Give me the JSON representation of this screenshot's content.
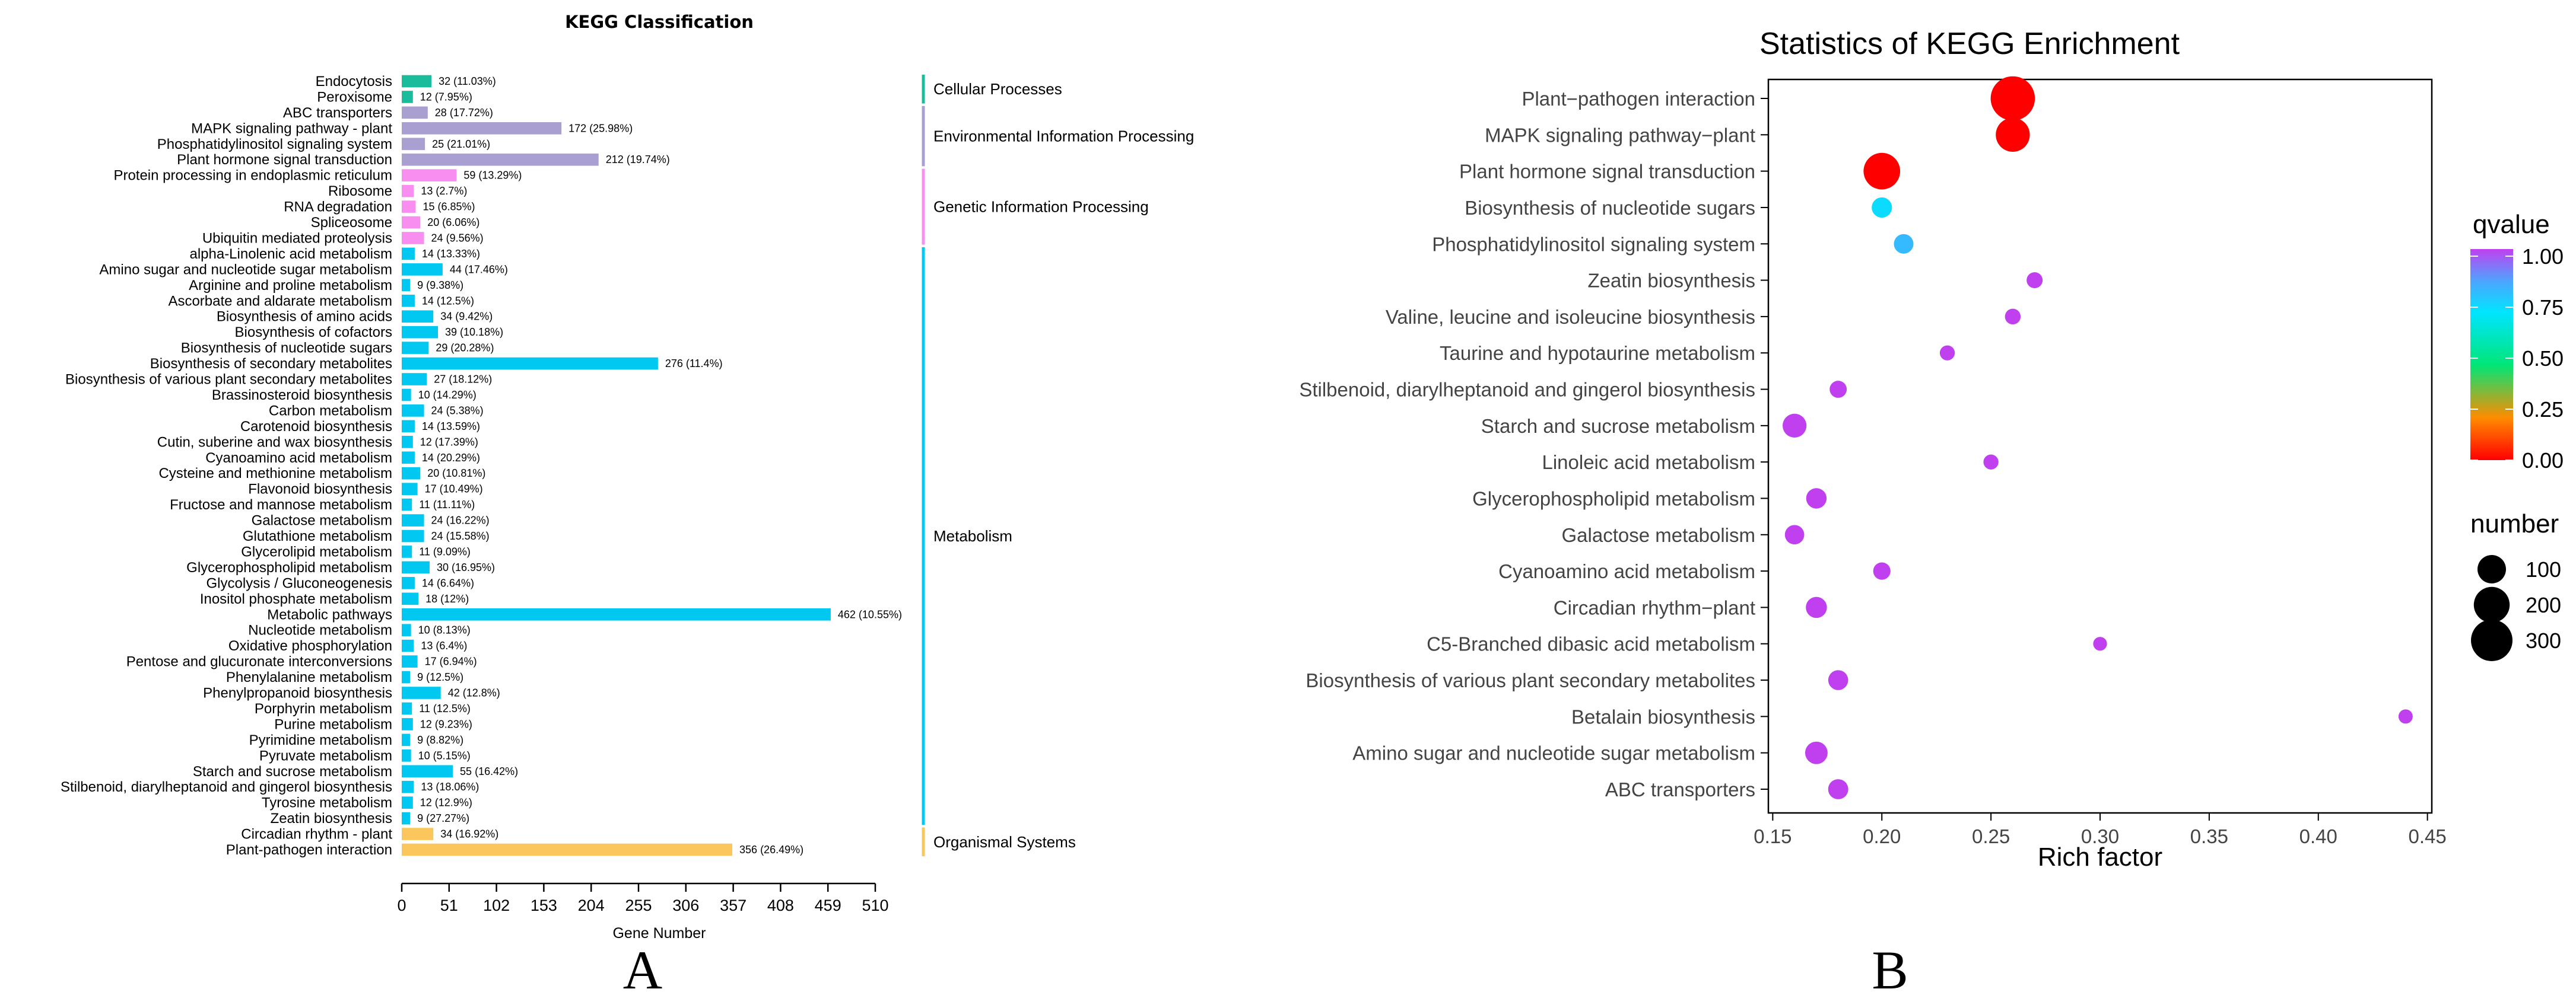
{
  "chart_data": [
    {
      "type": "bar",
      "orientation": "horizontal",
      "title": "KEGG Classification",
      "xlabel": "Gene Number",
      "xlim": [
        0,
        510
      ],
      "xticks": [
        "0",
        "51",
        "102",
        "153",
        "204",
        "255",
        "306",
        "357",
        "408",
        "459",
        "510"
      ],
      "categories": [
        {
          "name": "Cellular Processes",
          "color": "#1ABC9C"
        },
        {
          "name": "Environmental Information Processing",
          "color": "#A99FD0"
        },
        {
          "name": "Genetic Information Processing",
          "color": "#F78EF0"
        },
        {
          "name": "Metabolism",
          "color": "#00C8F0"
        },
        {
          "name": "Organismal Systems",
          "color": "#FBC75C"
        }
      ],
      "bars": [
        {
          "label": "Endocytosis",
          "value": 32,
          "annotation": "32 (11.03%)",
          "category": 0
        },
        {
          "label": "Peroxisome",
          "value": 12,
          "annotation": "12 (7.95%)",
          "category": 0
        },
        {
          "label": "ABC transporters",
          "value": 28,
          "annotation": "28 (17.72%)",
          "category": 1
        },
        {
          "label": "MAPK signaling pathway - plant",
          "value": 172,
          "annotation": "172 (25.98%)",
          "category": 1
        },
        {
          "label": "Phosphatidylinositol signaling system",
          "value": 25,
          "annotation": "25 (21.01%)",
          "category": 1
        },
        {
          "label": "Plant hormone signal transduction",
          "value": 212,
          "annotation": "212 (19.74%)",
          "category": 1
        },
        {
          "label": "Protein processing in endoplasmic reticulum",
          "value": 59,
          "annotation": "59 (13.29%)",
          "category": 2
        },
        {
          "label": "Ribosome",
          "value": 13,
          "annotation": "13 (2.7%)",
          "category": 2
        },
        {
          "label": "RNA degradation",
          "value": 15,
          "annotation": "15 (6.85%)",
          "category": 2
        },
        {
          "label": "Spliceosome",
          "value": 20,
          "annotation": "20 (6.06%)",
          "category": 2
        },
        {
          "label": "Ubiquitin mediated proteolysis",
          "value": 24,
          "annotation": "24 (9.56%)",
          "category": 2
        },
        {
          "label": "alpha-Linolenic acid metabolism",
          "value": 14,
          "annotation": "14 (13.33%)",
          "category": 3
        },
        {
          "label": "Amino sugar and nucleotide sugar metabolism",
          "value": 44,
          "annotation": "44 (17.46%)",
          "category": 3
        },
        {
          "label": "Arginine and proline metabolism",
          "value": 9,
          "annotation": "9 (9.38%)",
          "category": 3
        },
        {
          "label": "Ascorbate and aldarate metabolism",
          "value": 14,
          "annotation": "14 (12.5%)",
          "category": 3
        },
        {
          "label": "Biosynthesis of amino acids",
          "value": 34,
          "annotation": "34 (9.42%)",
          "category": 3
        },
        {
          "label": "Biosynthesis of cofactors",
          "value": 39,
          "annotation": "39 (10.18%)",
          "category": 3
        },
        {
          "label": "Biosynthesis of nucleotide sugars",
          "value": 29,
          "annotation": "29 (20.28%)",
          "category": 3
        },
        {
          "label": "Biosynthesis of secondary metabolites",
          "value": 276,
          "annotation": "276 (11.4%)",
          "category": 3
        },
        {
          "label": "Biosynthesis of various plant secondary metabolites",
          "value": 27,
          "annotation": "27 (18.12%)",
          "category": 3
        },
        {
          "label": "Brassinosteroid biosynthesis",
          "value": 10,
          "annotation": "10 (14.29%)",
          "category": 3
        },
        {
          "label": "Carbon metabolism",
          "value": 24,
          "annotation": "24 (5.38%)",
          "category": 3
        },
        {
          "label": "Carotenoid biosynthesis",
          "value": 14,
          "annotation": "14 (13.59%)",
          "category": 3
        },
        {
          "label": "Cutin, suberine and wax biosynthesis",
          "value": 12,
          "annotation": "12 (17.39%)",
          "category": 3
        },
        {
          "label": "Cyanoamino acid metabolism",
          "value": 14,
          "annotation": "14 (20.29%)",
          "category": 3
        },
        {
          "label": "Cysteine and methionine metabolism",
          "value": 20,
          "annotation": "20 (10.81%)",
          "category": 3
        },
        {
          "label": "Flavonoid biosynthesis",
          "value": 17,
          "annotation": "17 (10.49%)",
          "category": 3
        },
        {
          "label": "Fructose and mannose metabolism",
          "value": 11,
          "annotation": "11 (11.11%)",
          "category": 3
        },
        {
          "label": "Galactose metabolism",
          "value": 24,
          "annotation": "24 (16.22%)",
          "category": 3
        },
        {
          "label": "Glutathione metabolism",
          "value": 24,
          "annotation": "24 (15.58%)",
          "category": 3
        },
        {
          "label": "Glycerolipid metabolism",
          "value": 11,
          "annotation": "11 (9.09%)",
          "category": 3
        },
        {
          "label": "Glycerophospholipid metabolism",
          "value": 30,
          "annotation": "30 (16.95%)",
          "category": 3
        },
        {
          "label": "Glycolysis / Gluconeogenesis",
          "value": 14,
          "annotation": "14 (6.64%)",
          "category": 3
        },
        {
          "label": "Inositol phosphate metabolism",
          "value": 18,
          "annotation": "18 (12%)",
          "category": 3
        },
        {
          "label": "Metabolic pathways",
          "value": 462,
          "annotation": "462 (10.55%)",
          "category": 3
        },
        {
          "label": "Nucleotide metabolism",
          "value": 10,
          "annotation": "10 (8.13%)",
          "category": 3
        },
        {
          "label": "Oxidative phosphorylation",
          "value": 13,
          "annotation": "13 (6.4%)",
          "category": 3
        },
        {
          "label": "Pentose and glucuronate interconversions",
          "value": 17,
          "annotation": "17 (6.94%)",
          "category": 3
        },
        {
          "label": "Phenylalanine metabolism",
          "value": 9,
          "annotation": "9 (12.5%)",
          "category": 3
        },
        {
          "label": "Phenylpropanoid biosynthesis",
          "value": 42,
          "annotation": "42 (12.8%)",
          "category": 3
        },
        {
          "label": "Porphyrin metabolism",
          "value": 11,
          "annotation": "11 (12.5%)",
          "category": 3
        },
        {
          "label": "Purine metabolism",
          "value": 12,
          "annotation": "12 (9.23%)",
          "category": 3
        },
        {
          "label": "Pyrimidine metabolism",
          "value": 9,
          "annotation": "9 (8.82%)",
          "category": 3
        },
        {
          "label": "Pyruvate metabolism",
          "value": 10,
          "annotation": "10 (5.15%)",
          "category": 3
        },
        {
          "label": "Starch and sucrose metabolism",
          "value": 55,
          "annotation": "55 (16.42%)",
          "category": 3
        },
        {
          "label": "Stilbenoid, diarylheptanoid and gingerol biosynthesis",
          "value": 13,
          "annotation": "13 (18.06%)",
          "category": 3
        },
        {
          "label": "Tyrosine metabolism",
          "value": 12,
          "annotation": "12 (12.9%)",
          "category": 3
        },
        {
          "label": "Zeatin biosynthesis",
          "value": 9,
          "annotation": "9 (27.27%)",
          "category": 3
        },
        {
          "label": "Circadian rhythm - plant",
          "value": 34,
          "annotation": "34 (16.92%)",
          "category": 4
        },
        {
          "label": "Plant-pathogen interaction",
          "value": 356,
          "annotation": "356 (26.49%)",
          "category": 4
        }
      ],
      "panel_label": "A"
    },
    {
      "type": "scatter",
      "title": "Statistics of KEGG Enrichment",
      "xlabel": "Rich factor",
      "xlim": [
        0.148,
        0.452
      ],
      "xticks": [
        0.15,
        0.2,
        0.25,
        0.3,
        0.35,
        0.4,
        0.45
      ],
      "xtick_labels": [
        "0.15",
        "0.20",
        "0.25",
        "0.30",
        "0.35",
        "0.40",
        "0.45"
      ],
      "grid": false,
      "points": [
        {
          "label": "Plant−pathogen interaction",
          "rich_factor": 0.26,
          "number": 356,
          "qvalue": 0.0
        },
        {
          "label": "MAPK signaling pathway−plant",
          "rich_factor": 0.26,
          "number": 172,
          "qvalue": 0.0
        },
        {
          "label": "Plant hormone signal transduction",
          "rich_factor": 0.2,
          "number": 212,
          "qvalue": 0.0
        },
        {
          "label": "Biosynthesis of nucleotide sugars",
          "rich_factor": 0.2,
          "number": 29,
          "qvalue": 0.72
        },
        {
          "label": "Phosphatidylinositol signaling system",
          "rich_factor": 0.21,
          "number": 25,
          "qvalue": 0.8
        },
        {
          "label": "Zeatin biosynthesis",
          "rich_factor": 0.27,
          "number": 9,
          "qvalue": 1.0
        },
        {
          "label": "Valine, leucine and isoleucine biosynthesis",
          "rich_factor": 0.26,
          "number": 8,
          "qvalue": 1.0
        },
        {
          "label": "Taurine and hypotaurine metabolism",
          "rich_factor": 0.23,
          "number": 6,
          "qvalue": 1.0
        },
        {
          "label": "Stilbenoid, diarylheptanoid and gingerol biosynthesis",
          "rich_factor": 0.18,
          "number": 13,
          "qvalue": 1.0
        },
        {
          "label": "Starch and sucrose metabolism",
          "rich_factor": 0.16,
          "number": 55,
          "qvalue": 1.0
        },
        {
          "label": "Linoleic acid metabolism",
          "rich_factor": 0.25,
          "number": 6,
          "qvalue": 1.0
        },
        {
          "label": "Glycerophospholipid metabolism",
          "rich_factor": 0.17,
          "number": 30,
          "qvalue": 1.0
        },
        {
          "label": "Galactose metabolism",
          "rich_factor": 0.16,
          "number": 24,
          "qvalue": 1.0
        },
        {
          "label": "Cyanoamino acid metabolism",
          "rich_factor": 0.2,
          "number": 14,
          "qvalue": 1.0
        },
        {
          "label": "Circadian rhythm−plant",
          "rich_factor": 0.17,
          "number": 34,
          "qvalue": 1.0
        },
        {
          "label": "C5-Branched dibasic acid metabolism",
          "rich_factor": 0.3,
          "number": 3,
          "qvalue": 1.0
        },
        {
          "label": "Biosynthesis of various plant secondary metabolites",
          "rich_factor": 0.18,
          "number": 27,
          "qvalue": 1.0
        },
        {
          "label": "Betalain biosynthesis",
          "rich_factor": 0.44,
          "number": 4,
          "qvalue": 1.0
        },
        {
          "label": "Amino sugar and nucleotide sugar metabolism",
          "rich_factor": 0.17,
          "number": 44,
          "qvalue": 1.0
        },
        {
          "label": "ABC transporters",
          "rich_factor": 0.18,
          "number": 28,
          "qvalue": 1.0
        }
      ],
      "legend_color": {
        "title": "qvalue",
        "ticks": [
          "1.00",
          "0.75",
          "0.50",
          "0.25",
          "0.00"
        ],
        "colors": [
          "#FF0000",
          "#FF8C00",
          "#00E676",
          "#00E5FF",
          "#4FA3FF",
          "#C040F0"
        ]
      },
      "legend_size": {
        "title": "number",
        "values": [
          100,
          200,
          300
        ],
        "labels": [
          "100",
          "200",
          "300"
        ]
      },
      "panel_label": "B"
    }
  ]
}
